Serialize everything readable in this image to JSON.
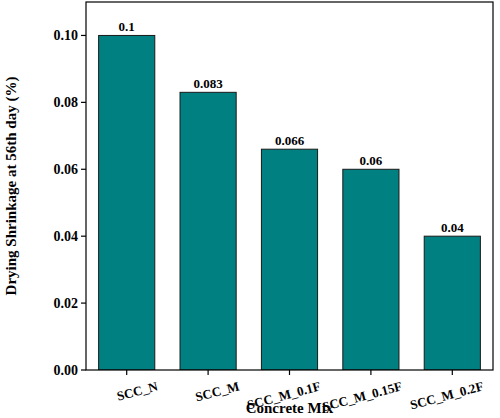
{
  "chart_data": {
    "type": "bar",
    "x_label": "Concrete Mix",
    "y_label": "Drying Shrinkage at 56th day (%)",
    "categories": [
      "SCC_N",
      "SCC_M",
      "SCC_M_0.1F",
      "SCC_M_0.15F",
      "SCC_M_0.2F"
    ],
    "values": [
      0.1,
      0.083,
      0.066,
      0.06,
      0.04
    ],
    "color": "#008080",
    "ylim": [
      0,
      0.11
    ],
    "yticks": [
      {
        "value": 0,
        "label": "0.00"
      },
      {
        "value": 0.02,
        "label": "0.02"
      },
      {
        "value": 0.04,
        "label": "0.04"
      },
      {
        "value": 0.06,
        "label": "0.06"
      },
      {
        "value": 0.08,
        "label": "0.08"
      },
      {
        "value": 0.1,
        "label": "0.10"
      }
    ],
    "data_labels": true,
    "grid": false
  }
}
